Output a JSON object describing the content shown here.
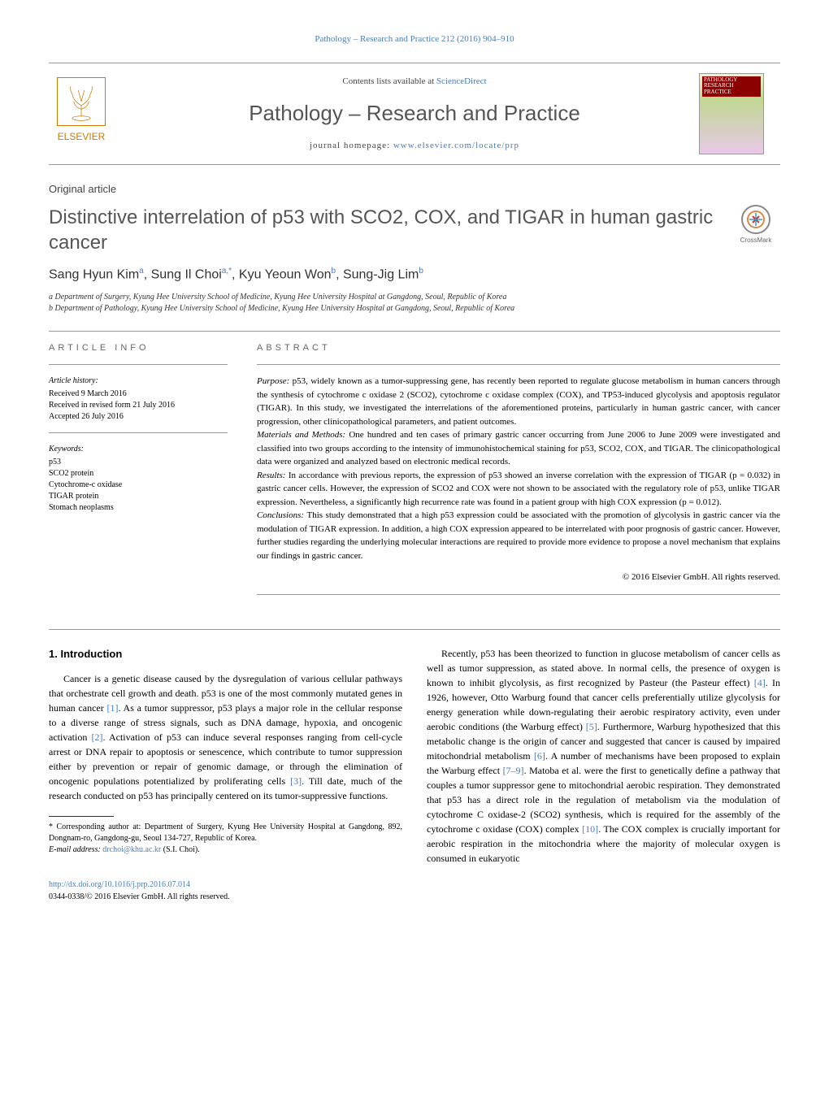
{
  "header": {
    "citation": "Pathology – Research and Practice 212 (2016) 904–910"
  },
  "masthead": {
    "contents_prefix": "Contents lists available at ",
    "contents_link": "ScienceDirect",
    "journal_name": "Pathology – Research and Practice",
    "homepage_prefix": "journal homepage: ",
    "homepage_url": "www.elsevier.com/locate/prp",
    "publisher_name": "ELSEVIER",
    "cover_title": "PATHOLOGY RESEARCH PRACTICE"
  },
  "article": {
    "type": "Original article",
    "title": "Distinctive interrelation of p53 with SCO2, COX, and TIGAR in human gastric cancer",
    "crossmark_label": "CrossMark"
  },
  "authors": {
    "list": "Sang Hyun Kim",
    "a1_sup": "a",
    "a2": ", Sung Il Choi",
    "a2_sup": "a,*",
    "a3": ", Kyu Yeoun Won",
    "a3_sup": "b",
    "a4": ", Sung-Jig Lim",
    "a4_sup": "b"
  },
  "affiliations": {
    "a": "a Department of Surgery, Kyung Hee University School of Medicine, Kyung Hee University Hospital at Gangdong, Seoul, Republic of Korea",
    "b": "b Department of Pathology, Kyung Hee University School of Medicine, Kyung Hee University Hospital at Gangdong, Seoul, Republic of Korea"
  },
  "info": {
    "heading": "ARTICLE INFO",
    "history_label": "Article history:",
    "received": "Received 9 March 2016",
    "revised": "Received in revised form 21 July 2016",
    "accepted": "Accepted 26 July 2016",
    "keywords_label": "Keywords:",
    "kw1": "p53",
    "kw2": "SCO2 protein",
    "kw3": "Cytochrome-c oxidase",
    "kw4": "TIGAR protein",
    "kw5": "Stomach neoplasms"
  },
  "abstract": {
    "heading": "ABSTRACT",
    "purpose_label": "Purpose: ",
    "purpose": "p53, widely known as a tumor-suppressing gene, has recently been reported to regulate glucose metabolism in human cancers through the synthesis of cytochrome c oxidase 2 (SCO2), cytochrome c oxidase complex (COX), and TP53-induced glycolysis and apoptosis regulator (TIGAR). In this study, we investigated the interrelations of the aforementioned proteins, particularly in human gastric cancer, with cancer progression, other clinicopathological parameters, and patient outcomes.",
    "methods_label": "Materials and Methods: ",
    "methods": "One hundred and ten cases of primary gastric cancer occurring from June 2006 to June 2009 were investigated and classified into two groups according to the intensity of immunohistochemical staining for p53, SCO2, COX, and TIGAR. The clinicopathological data were organized and analyzed based on electronic medical records.",
    "results_label": "Results: ",
    "results": "In accordance with previous reports, the expression of p53 showed an inverse correlation with the expression of TIGAR (p = 0.032) in gastric cancer cells. However, the expression of SCO2 and COX were not shown to be associated with the regulatory role of p53, unlike TIGAR expression. Nevertheless, a significantly high recurrence rate was found in a patient group with high COX expression (p = 0.012).",
    "conclusions_label": "Conclusions: ",
    "conclusions": "This study demonstrated that a high p53 expression could be associated with the promotion of glycolysis in gastric cancer via the modulation of TIGAR expression. In addition, a high COX expression appeared to be interrelated with poor prognosis of gastric cancer. However, further studies regarding the underlying molecular interactions are required to provide more evidence to propose a novel mechanism that explains our findings in gastric cancer.",
    "copyright": "© 2016 Elsevier GmbH. All rights reserved."
  },
  "body": {
    "section_heading": "1. Introduction",
    "col1_p1": "Cancer is a genetic disease caused by the dysregulation of various cellular pathways that orchestrate cell growth and death. p53 is one of the most commonly mutated genes in human cancer [1]. As a tumor suppressor, p53 plays a major role in the cellular response to a diverse range of stress signals, such as DNA damage, hypoxia, and oncogenic activation [2]. Activation of p53 can induce several responses ranging from cell-cycle arrest or DNA repair to apoptosis or senescence, which contribute to tumor suppression either by prevention or repair of genomic damage, or through the elimination of oncogenic populations potentialized by proliferating cells [3]. Till date, much of the research conducted on p53 has principally centered on its tumor-suppressive functions.",
    "col2_p1": "Recently, p53 has been theorized to function in glucose metabolism of cancer cells as well as tumor suppression, as stated above. In normal cells, the presence of oxygen is known to inhibit glycolysis, as first recognized by Pasteur (the Pasteur effect) [4]. In 1926, however, Otto Warburg found that cancer cells preferentially utilize glycolysis for energy generation while down-regulating their aerobic respiratory activity, even under aerobic conditions (the Warburg effect) [5]. Furthermore, Warburg hypothesized that this metabolic change is the origin of cancer and suggested that cancer is caused by impaired mitochondrial metabolism [6]. A number of mechanisms have been proposed to explain the Warburg effect [7–9]. Matoba et al. were the first to genetically define a pathway that couples a tumor suppressor gene to mitochondrial aerobic respiration. They demonstrated that p53 has a direct role in the regulation of metabolism via the modulation of cytochrome C oxidase-2 (SCO2) synthesis, which is required for the assembly of the cytochrome c oxidase (COX) complex [10]. The COX complex is crucially important for aerobic respiration in the mitochondria where the majority of molecular oxygen is consumed in eukaryotic"
  },
  "footnote": {
    "corresponding": "* Corresponding author at: Department of Surgery, Kyung Hee University Hospital at Gangdong, 892, Dongnam-ro, Gangdong-gu, Seoul 134-727, Republic of Korea.",
    "email_label": "E-mail address: ",
    "email": "drchoi@khu.ac.kr",
    "email_suffix": " (S.I. Choi)."
  },
  "doi": {
    "url": "http://dx.doi.org/10.1016/j.prp.2016.07.014",
    "issn_line": "0344-0338/© 2016 Elsevier GmbH. All rights reserved."
  },
  "colors": {
    "link": "#4a7cb8",
    "elsevier": "#cc7a00",
    "heading_gray": "#555555"
  }
}
